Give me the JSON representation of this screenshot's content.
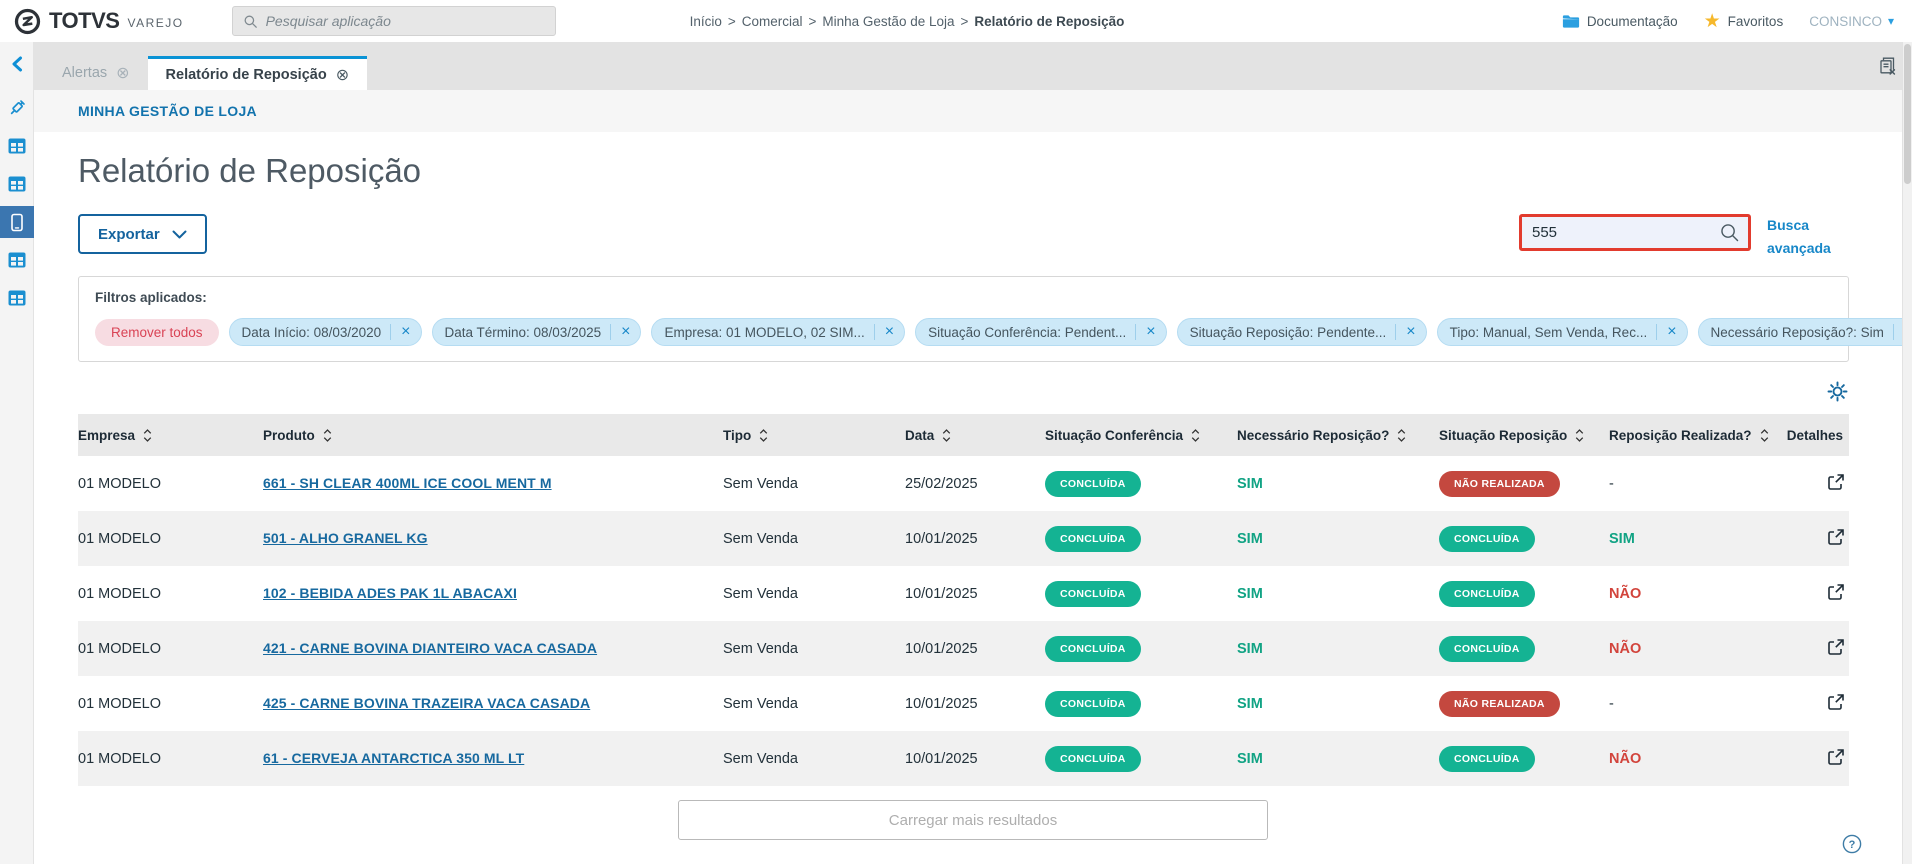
{
  "topbar": {
    "brand": {
      "name": "TOTVS",
      "suffix": "VAREJO"
    },
    "app_search": {
      "placeholder": "Pesquisar aplicação"
    },
    "breadcrumb": {
      "items": [
        "Início",
        "Comercial",
        "Minha Gestão de Loja"
      ],
      "current": "Relatório de Reposição",
      "separator": ">"
    },
    "links": {
      "documentation": "Documentação",
      "favorites": "Favoritos",
      "user": "CONSINCO"
    }
  },
  "sidebar": {
    "items": [
      {
        "icon": "syringe",
        "selected": false
      },
      {
        "icon": "app-window",
        "selected": false
      },
      {
        "icon": "app-window",
        "selected": false
      },
      {
        "icon": "phone",
        "selected": true
      },
      {
        "icon": "app-window",
        "selected": false
      },
      {
        "icon": "app-window",
        "selected": false
      }
    ]
  },
  "tabs": [
    {
      "label": "Alertas",
      "active": false
    },
    {
      "label": "Relatório de Reposição",
      "active": true
    }
  ],
  "page": {
    "section_link": "MINHA GESTÃO DE LOJA",
    "title": "Relatório de Reposição",
    "export_button": "Exportar",
    "search": {
      "value": "555"
    },
    "advanced_search": "Busca avançada",
    "filters": {
      "label": "Filtros aplicados:",
      "remove_all": "Remover todos",
      "chips": [
        "Data Início: 08/03/2020",
        "Data Término: 08/03/2025",
        "Empresa: 01 MODELO, 02 SIM...",
        "Situação Conferência: Pendent...",
        "Situação Reposição: Pendente...",
        "Tipo: Manual, Sem Venda, Rec...",
        "Necessário Reposição?: Sim"
      ]
    },
    "load_more": "Carregar mais resultados"
  },
  "table": {
    "columns": [
      {
        "label": "Empresa",
        "sortable": true
      },
      {
        "label": "Produto",
        "sortable": true
      },
      {
        "label": "Tipo",
        "sortable": true
      },
      {
        "label": "Data",
        "sortable": true
      },
      {
        "label": "Situação Conferência",
        "sortable": true
      },
      {
        "label": "Necessário Reposição?",
        "sortable": true
      },
      {
        "label": "Situação Reposição",
        "sortable": true
      },
      {
        "label": "Reposição Realizada?",
        "sortable": true
      },
      {
        "label": "Detalhes",
        "sortable": false
      }
    ],
    "rows": [
      {
        "empresa": "01 MODELO",
        "produto": "661 - SH CLEAR 400ML ICE COOL MENT M",
        "tipo": "Sem Venda",
        "data": "25/02/2025",
        "situacao_conferencia": "CONCLUÍDA",
        "necessario_reposicao": "SIM",
        "situacao_reposicao": "NÃO REALIZADA",
        "situacao_reposicao_variant": "danger",
        "reposicao_realizada": "-"
      },
      {
        "empresa": "01 MODELO",
        "produto": "501 - ALHO GRANEL KG",
        "tipo": "Sem Venda",
        "data": "10/01/2025",
        "situacao_conferencia": "CONCLUÍDA",
        "necessario_reposicao": "SIM",
        "situacao_reposicao": "CONCLUÍDA",
        "situacao_reposicao_variant": "success",
        "reposicao_realizada": "SIM"
      },
      {
        "empresa": "01 MODELO",
        "produto": "102 - BEBIDA ADES PAK 1L ABACAXI",
        "tipo": "Sem Venda",
        "data": "10/01/2025",
        "situacao_conferencia": "CONCLUÍDA",
        "necessario_reposicao": "SIM",
        "situacao_reposicao": "CONCLUÍDA",
        "situacao_reposicao_variant": "success",
        "reposicao_realizada": "NÃO"
      },
      {
        "empresa": "01 MODELO",
        "produto": "421 - CARNE BOVINA DIANTEIRO VACA CASADA",
        "tipo": "Sem Venda",
        "data": "10/01/2025",
        "situacao_conferencia": "CONCLUÍDA",
        "necessario_reposicao": "SIM",
        "situacao_reposicao": "CONCLUÍDA",
        "situacao_reposicao_variant": "success",
        "reposicao_realizada": "NÃO"
      },
      {
        "empresa": "01 MODELO",
        "produto": "425 - CARNE BOVINA TRAZEIRA VACA CASADA",
        "tipo": "Sem Venda",
        "data": "10/01/2025",
        "situacao_conferencia": "CONCLUÍDA",
        "necessario_reposicao": "SIM",
        "situacao_reposicao": "NÃO REALIZADA",
        "situacao_reposicao_variant": "danger",
        "reposicao_realizada": "-"
      },
      {
        "empresa": "01 MODELO",
        "produto": "61 - CERVEJA ANTARCTICA 350 ML LT",
        "tipo": "Sem Venda",
        "data": "10/01/2025",
        "situacao_conferencia": "CONCLUÍDA",
        "necessario_reposicao": "SIM",
        "situacao_reposicao": "CONCLUÍDA",
        "situacao_reposicao_variant": "success",
        "reposicao_realizada": "NÃO"
      }
    ]
  },
  "colors": {
    "accent": "#1787c8",
    "link": "#17699f",
    "success": "#14b393",
    "danger": "#c4483f",
    "danger_text": "#d2443c",
    "success_text": "#11a384",
    "search_highlight_border": "#e23b2e",
    "filter_chip_bg": "#cde9f8",
    "remove_chip_bg": "#f7dce2",
    "sidebar_selected": "#3b76b0",
    "star": "#f6b82c",
    "active_tab_border": "#0a93d5"
  }
}
